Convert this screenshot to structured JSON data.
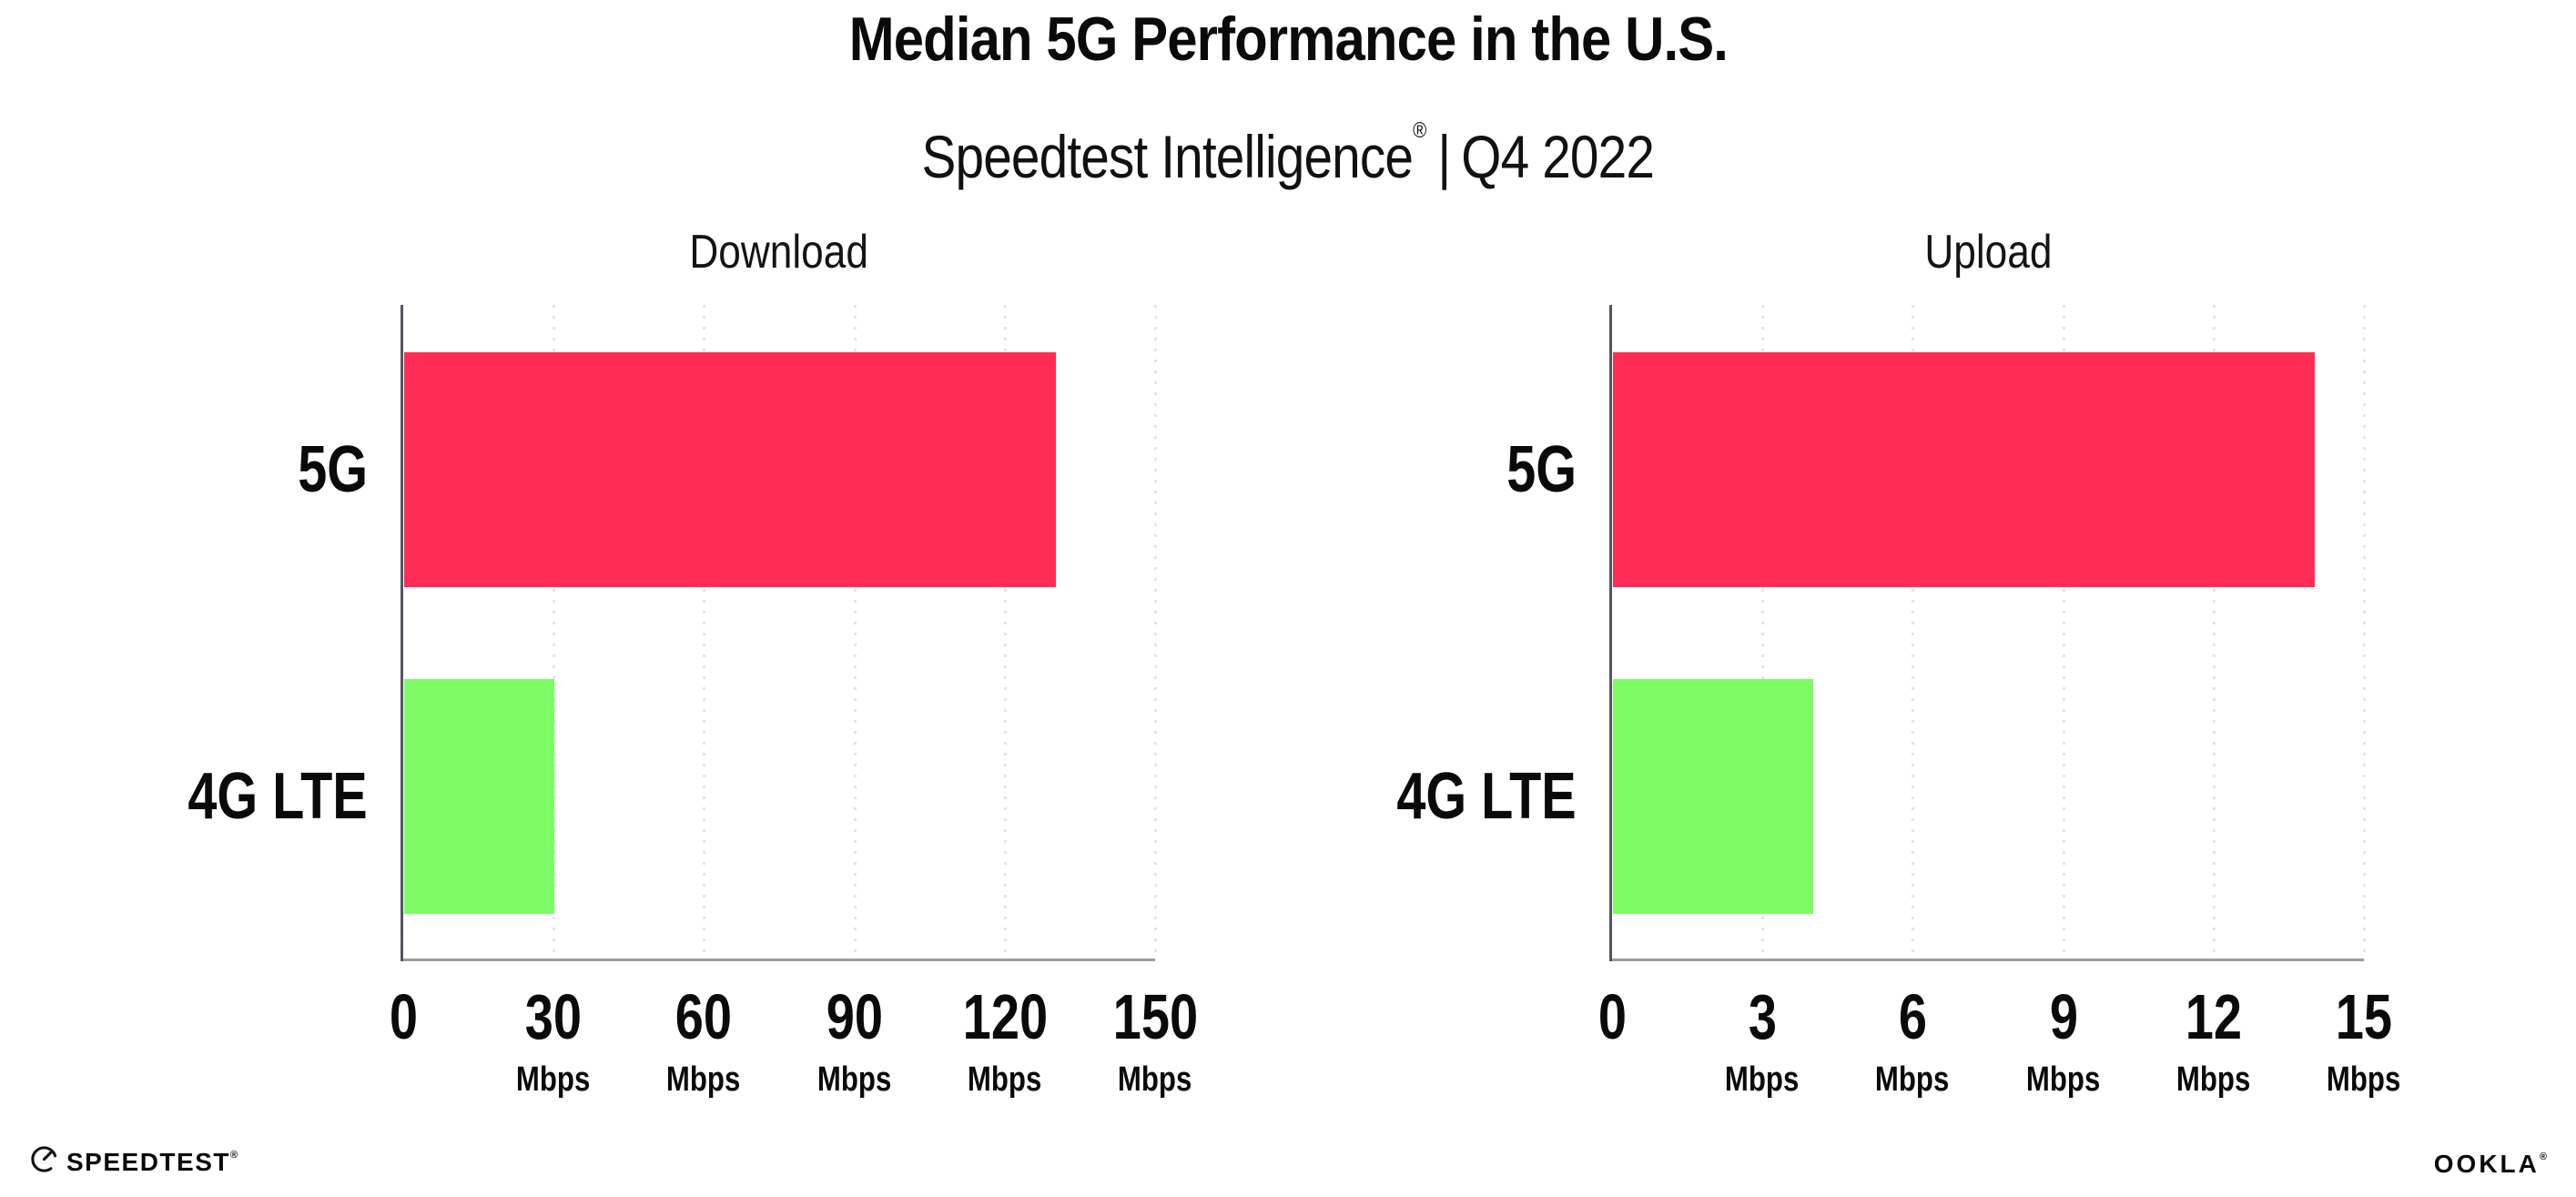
{
  "header": {
    "title": "Median 5G Performance in the U.S.",
    "subtitle_brand": "Speedtest Intelligence",
    "subtitle_trademark": "®",
    "subtitle_separator": "|",
    "subtitle_period": "Q4 2022"
  },
  "chart_data": [
    {
      "type": "bar",
      "orientation": "horizontal",
      "title": "Download",
      "categories": [
        "5G",
        "4G LTE"
      ],
      "values": [
        130,
        30
      ],
      "unit": "Mbps",
      "xlim": [
        0,
        150
      ],
      "xticks": [
        0,
        30,
        60,
        90,
        120,
        150
      ],
      "grid": "dotted-vertical",
      "legend": "none"
    },
    {
      "type": "bar",
      "orientation": "horizontal",
      "title": "Upload",
      "categories": [
        "5G",
        "4G LTE"
      ],
      "values": [
        14,
        4
      ],
      "unit": "Mbps",
      "xlim": [
        0,
        15
      ],
      "xticks": [
        0,
        3,
        6,
        9,
        12,
        15
      ],
      "grid": "dotted-vertical",
      "legend": "none"
    }
  ],
  "colors": {
    "bar_5g": "#ff2d55",
    "bar_4g_lte": "#7efc66",
    "y_axis_line": "#55555e",
    "x_axis_line": "#9b9ba3",
    "gridline": "#e4e4ee",
    "text": "#0a0a0a"
  },
  "footer": {
    "left_logo_text": "SPEEDTEST",
    "left_logo_mark": "®",
    "left_logo_icon": "speedtest-gauge-icon",
    "right_logo_text": "OOKLA",
    "right_logo_mark": "®"
  }
}
